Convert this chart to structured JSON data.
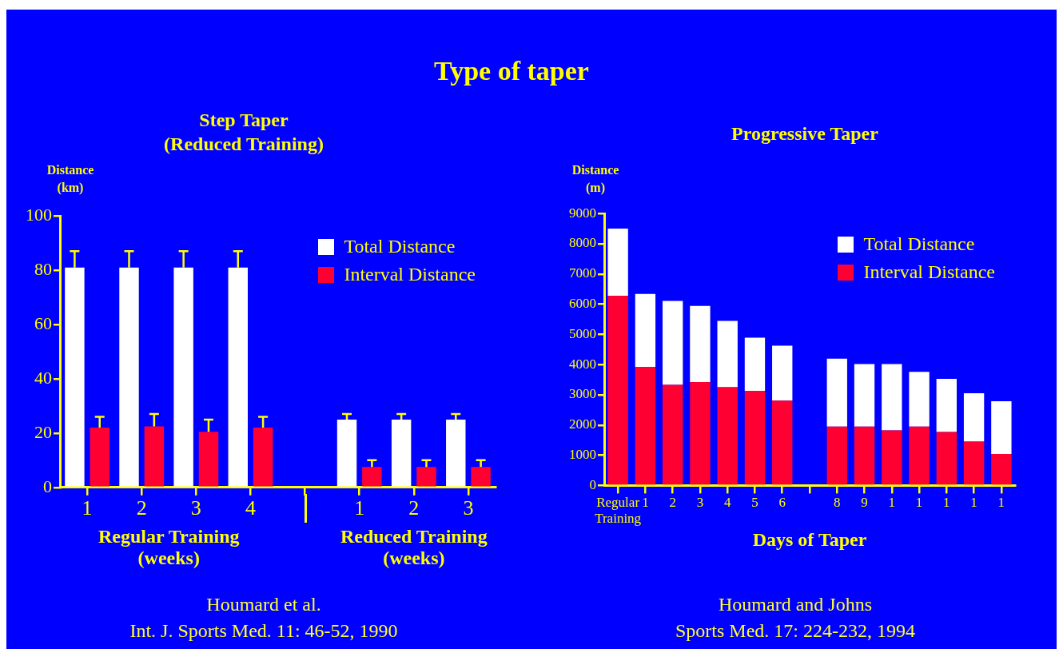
{
  "chart_data": [
    {
      "type": "bar",
      "title": "Type of taper",
      "subtitle": "Step Taper\n(Reduced Training)",
      "ylabel": "Distance\n(km)",
      "categories": [
        "1",
        "2",
        "3",
        "4",
        null,
        "1",
        "2",
        "3"
      ],
      "series": [
        {
          "name": "Total Distance",
          "color": "#ffffff",
          "values": [
            81,
            81,
            81,
            81,
            null,
            25,
            25,
            25
          ],
          "errors": [
            [
              81,
              87
            ],
            [
              81,
              87
            ],
            [
              81,
              87
            ],
            [
              81,
              87
            ],
            null,
            [
              25,
              27
            ],
            [
              25,
              27
            ],
            [
              25,
              27
            ]
          ]
        },
        {
          "name": "Interval Distance",
          "color": "#ff0033",
          "values": [
            22,
            22.5,
            20.5,
            22,
            null,
            7.5,
            7.5,
            7.5
          ],
          "errors": [
            [
              22,
              26
            ],
            [
              22.5,
              27
            ],
            [
              20.5,
              25
            ],
            [
              22,
              26
            ],
            null,
            [
              7.5,
              10
            ],
            [
              7.5,
              10
            ],
            [
              7.5,
              10
            ]
          ]
        }
      ],
      "ylim": [
        0,
        100
      ],
      "yticks": [
        0,
        20,
        40,
        60,
        80,
        100
      ],
      "grid": false,
      "legend": "top right",
      "annotations": [
        "Regular Training\n(weeks)",
        "Reduced Training\n(weeks)",
        "Houmard et al.",
        "Int. J. Sports Med. 11: 46-52, 1990"
      ]
    },
    {
      "type": "bar",
      "subtitle": "Progressive Taper",
      "ylabel": "Distance\n(m)",
      "xlabel": "Days of Taper",
      "categories": [
        "Regular Training",
        "1",
        "2",
        "3",
        "4",
        "5",
        "6",
        null,
        "8",
        "9",
        "1",
        "1",
        "1",
        "1",
        "1"
      ],
      "stacked": true,
      "series": [
        {
          "name": "Interval Distance",
          "color": "#ff0033",
          "values": [
            6280,
            3920,
            3330,
            3420,
            3250,
            3130,
            2810,
            null,
            1950,
            1950,
            1820,
            1950,
            1770,
            1450,
            1040
          ]
        },
        {
          "name": "Total Distance",
          "color": "#ffffff",
          "values": [
            2220,
            2420,
            2780,
            2520,
            2200,
            1760,
            1820,
            null,
            2250,
            2070,
            2200,
            1810,
            1760,
            1600,
            1750
          ]
        }
      ],
      "ylim": [
        0,
        9000
      ],
      "yticks": [
        0,
        1000,
        2000,
        3000,
        4000,
        5000,
        6000,
        7000,
        8000,
        9000
      ],
      "grid": false,
      "legend": "top right",
      "annotations": [
        "Houmard and Johns",
        "Sports Med. 17: 224-232, 1994"
      ]
    }
  ]
}
